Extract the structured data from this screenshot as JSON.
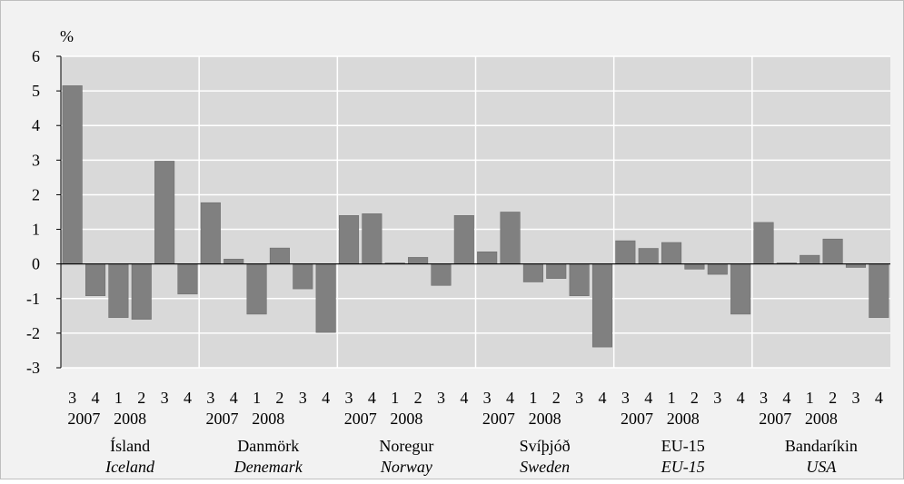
{
  "chart_data": {
    "type": "bar",
    "ylabel": "%",
    "ylim": [
      -3,
      6
    ],
    "yticks": [
      "6",
      "5",
      "4",
      "3",
      "2",
      "1",
      "0",
      "-1",
      "-2",
      "-3"
    ],
    "grid": true,
    "legend": "none",
    "colors": {
      "plot_bg": "#d9d9d9",
      "bar": "#808080",
      "frame_bg": "#f2f2f2",
      "grid": "#ffffff"
    },
    "groups": [
      {
        "name": "Ísland",
        "name_en": "Iceland",
        "quarters": [
          "3",
          "4",
          "1",
          "2",
          "3",
          "4"
        ],
        "year_labels": [
          "2007",
          "2008"
        ],
        "values": [
          5.15,
          -0.92,
          -1.55,
          -1.6,
          2.97,
          -0.87
        ]
      },
      {
        "name": "Danmörk",
        "name_en": "Denemark",
        "quarters": [
          "3",
          "4",
          "1",
          "2",
          "3",
          "4"
        ],
        "year_labels": [
          "2007",
          "2008"
        ],
        "values": [
          1.77,
          0.14,
          -1.45,
          0.46,
          -0.72,
          -1.98
        ]
      },
      {
        "name": "Noregur",
        "name_en": "Norway",
        "quarters": [
          "3",
          "4",
          "1",
          "2",
          "3",
          "4"
        ],
        "year_labels": [
          "2007",
          "2008"
        ],
        "values": [
          1.4,
          1.45,
          0.03,
          0.19,
          -0.62,
          1.4
        ]
      },
      {
        "name": "Svíþjóð",
        "name_en": "Sweden",
        "quarters": [
          "3",
          "4",
          "1",
          "2",
          "3",
          "4"
        ],
        "year_labels": [
          "2007",
          "2008"
        ],
        "values": [
          0.35,
          1.5,
          -0.52,
          -0.42,
          -0.92,
          -2.4
        ]
      },
      {
        "name": "EU-15",
        "name_en": "EU-15",
        "quarters": [
          "3",
          "4",
          "1",
          "2",
          "3",
          "4"
        ],
        "year_labels": [
          "2007",
          "2008"
        ],
        "values": [
          0.67,
          0.45,
          0.62,
          -0.15,
          -0.3,
          -1.45
        ]
      },
      {
        "name": "Bandaríkin",
        "name_en": "USA",
        "quarters": [
          "3",
          "4",
          "1",
          "2",
          "3",
          "4"
        ],
        "year_labels": [
          "2007",
          "2008"
        ],
        "values": [
          1.2,
          0.03,
          0.25,
          0.72,
          -0.1,
          -1.55
        ]
      }
    ]
  }
}
